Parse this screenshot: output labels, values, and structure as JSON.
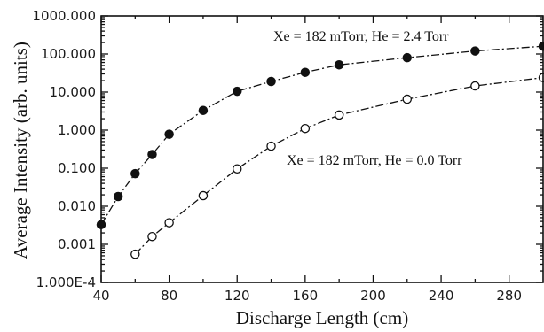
{
  "chart_data": {
    "type": "scatter",
    "xlabel": "Discharge Length (cm)",
    "ylabel": "Average Intensity (arb. units)",
    "xlim": [
      40,
      300
    ],
    "ylim": [
      0.0001,
      1000
    ],
    "yscale": "log",
    "grid": false,
    "x_ticks": [
      40,
      80,
      120,
      160,
      200,
      240,
      280
    ],
    "x_tick_labels": [
      "40",
      "80",
      "120",
      "160",
      "200",
      "240",
      "280"
    ],
    "y_ticks": [
      0.0001,
      0.001,
      0.01,
      0.1,
      1,
      10,
      100,
      1000
    ],
    "y_tick_labels": [
      "1.000E-4",
      "0.001",
      "0.010",
      "0.100",
      "1.000",
      "10.000",
      "100.000",
      "1000.000"
    ],
    "series": [
      {
        "marker": "filled-circle",
        "line": "dash-dot",
        "x": [
          40,
          50,
          60,
          70,
          80,
          100,
          120,
          140,
          160,
          180,
          220,
          260,
          300
        ],
        "y": [
          0.0033,
          0.018,
          0.072,
          0.23,
          0.78,
          3.3,
          10.5,
          19,
          33,
          52,
          80,
          120,
          160
        ]
      },
      {
        "marker": "open-circle",
        "line": "dash-dot",
        "x": [
          60,
          70,
          80,
          100,
          120,
          140,
          160,
          180,
          220,
          260,
          300
        ],
        "y": [
          0.00055,
          0.0016,
          0.0037,
          0.019,
          0.096,
          0.38,
          1.1,
          2.5,
          6.5,
          14.5,
          24
        ]
      }
    ],
    "annotations": [
      {
        "text": "Xe = 182 mTorr, He = 2.4 Torr",
        "series": 0
      },
      {
        "text": "Xe = 182 mTorr, He = 0.0 Torr",
        "series": 1
      }
    ]
  }
}
